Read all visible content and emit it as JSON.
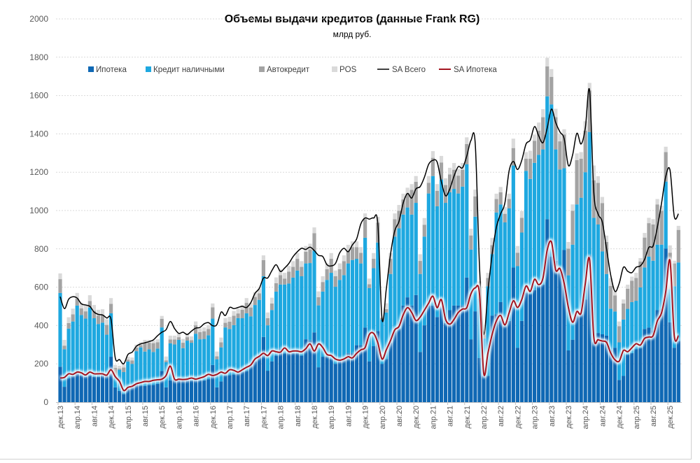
{
  "chart_data": {
    "type": "bar",
    "stacked": true,
    "title": "Объемы выдачи кредитов (данные Frank RG)",
    "subtitle": "млрд руб.",
    "ylim": [
      0,
      2000
    ],
    "yticks": [
      "0",
      "200",
      "400",
      "600",
      "800",
      "1000",
      "1200",
      "1400",
      "1600",
      "1800",
      "2000"
    ],
    "grid": true,
    "legend_position": "top-left",
    "x_tick_labels": [
      "дек.13",
      "апр.14",
      "авг.14",
      "дек.14",
      "апр.15",
      "авг.15",
      "дек.15",
      "апр.16",
      "авг.16",
      "дек.16",
      "апр.17",
      "авг.17",
      "дек.17",
      "апр.18",
      "авг.18",
      "дек.18",
      "апр.19",
      "авг.19",
      "дек.19",
      "апр.20",
      "авг.20",
      "дек.20",
      "апр.21",
      "авг.21",
      "дек.21",
      "апр.22",
      "авг.22",
      "дек.22",
      "апр.23",
      "авг.23",
      "дек.23",
      "апр.24",
      "авг.24",
      "дек.24",
      "апр.25",
      "авг.25",
      "дек.25"
    ],
    "x_tick_every_months": 4,
    "series": [
      {
        "name": "Ипотека",
        "kind": "bar",
        "color": "#0f68b4",
        "values": [
          185,
          80,
          124,
          136,
          151,
          139,
          132,
          139,
          132,
          132,
          139,
          139,
          237,
          77,
          59,
          43,
          71,
          77,
          90,
          87,
          85,
          90,
          90,
          96,
          163,
          77,
          114,
          120,
          117,
          114,
          114,
          114,
          120,
          114,
          114,
          120,
          194,
          77,
          108,
          139,
          141,
          145,
          151,
          157,
          163,
          188,
          212,
          243,
          340,
          164,
          213,
          243,
          279,
          255,
          255,
          255,
          255,
          243,
          328,
          322,
          364,
          182,
          237,
          237,
          225,
          200,
          225,
          219,
          255,
          255,
          297,
          297,
          389,
          213,
          292,
          371,
          200,
          225,
          310,
          371,
          383,
          504,
          547,
          504,
          559,
          262,
          401,
          504,
          504,
          444,
          504,
          413,
          480,
          504,
          504,
          504,
          650,
          328,
          474,
          230,
          137,
          137,
          452,
          459,
          522,
          396,
          424,
          703,
          284,
          424,
          571,
          564,
          585,
          606,
          613,
          955,
          759,
          738,
          690,
          794,
          270,
          326,
          466,
          459,
          536,
          766,
          312,
          361,
          354,
          347,
          270,
          284,
          116,
          137,
          249,
          256,
          277,
          284,
          382,
          389,
          375,
          480,
          487,
          801,
          417,
          284,
          319
        ]
      },
      {
        "name": "Кредит наличными",
        "kind": "bar",
        "color": "#1ea8e0",
        "values": [
          385,
          196,
          260,
          285,
          353,
          316,
          304,
          355,
          306,
          276,
          276,
          213,
          227,
          62,
          110,
          114,
          141,
          123,
          176,
          199,
          179,
          186,
          172,
          184,
          227,
          132,
          193,
          181,
          208,
          168,
          207,
          196,
          237,
          214,
          216,
          229,
          242,
          147,
          178,
          251,
          241,
          257,
          288,
          281,
          301,
          260,
          295,
          291,
          317,
          237,
          268,
          334,
          335,
          359,
          364,
          395,
          432,
          414,
          396,
          404,
          426,
          323,
          340,
          401,
          450,
          402,
          413,
          444,
          469,
          487,
          451,
          427,
          469,
          383,
          407,
          462,
          231,
          243,
          359,
          493,
          524,
          475,
          469,
          475,
          481,
          407,
          463,
          585,
          676,
          578,
          658,
          627,
          615,
          609,
          585,
          621,
          591,
          468,
          494,
          310,
          196,
          468,
          321,
          531,
          510,
          542,
          587,
          532,
          426,
          461,
          636,
          601,
          664,
          685,
          706,
          641,
          795,
          581,
          524,
          427,
          392,
          496,
          566,
          608,
          664,
          644,
          650,
          566,
          433,
          322,
          218,
          189,
          196,
          294,
          238,
          266,
          252,
          315,
          321,
          370,
          363,
          342,
          335,
          350,
          173,
          321,
          410
        ]
      },
      {
        "name": "Автокредит",
        "kind": "bar",
        "color": "#a3a3a3",
        "values": [
          72,
          19,
          29,
          37,
          36,
          34,
          38,
          34,
          39,
          44,
          40,
          51,
          49,
          40,
          6,
          24,
          10,
          18,
          19,
          12,
          46,
          34,
          46,
          33,
          45,
          9,
          20,
          26,
          14,
          28,
          18,
          13,
          44,
          38,
          40,
          33,
          59,
          15,
          26,
          24,
          38,
          49,
          24,
          44,
          54,
          46,
          42,
          34,
          84,
          37,
          34,
          44,
          49,
          31,
          62,
          56,
          61,
          49,
          61,
          71,
          92,
          43,
          50,
          56,
          73,
          55,
          56,
          73,
          67,
          67,
          61,
          55,
          97,
          19,
          49,
          104,
          7,
          18,
          79,
          91,
          92,
          79,
          73,
          129,
          110,
          68,
          62,
          56,
          95,
          81,
          88,
          93,
          93,
          100,
          93,
          88,
          106,
          74,
          106,
          55,
          17,
          43,
          47,
          70,
          63,
          45,
          49,
          91,
          70,
          77,
          63,
          105,
          115,
          126,
          168,
          156,
          143,
          168,
          147,
          175,
          139,
          177,
          231,
          203,
          217,
          217,
          196,
          217,
          252,
          167,
          119,
          84,
          84,
          84,
          105,
          112,
          119,
          135,
          156,
          175,
          189,
          210,
          177,
          154,
          190,
          119,
          170
        ]
      },
      {
        "name": "POS",
        "kind": "bar",
        "color": "#dadada",
        "values": [
          30,
          30,
          30,
          30,
          30,
          30,
          30,
          30,
          30,
          30,
          30,
          30,
          30,
          15,
          15,
          15,
          15,
          15,
          15,
          15,
          15,
          15,
          15,
          15,
          15,
          20,
          20,
          20,
          20,
          20,
          20,
          20,
          20,
          20,
          20,
          20,
          20,
          25,
          25,
          25,
          25,
          25,
          25,
          25,
          25,
          25,
          25,
          25,
          25,
          30,
          30,
          30,
          30,
          30,
          30,
          30,
          30,
          30,
          30,
          30,
          30,
          30,
          30,
          30,
          30,
          30,
          30,
          30,
          30,
          30,
          30,
          30,
          30,
          30,
          30,
          30,
          5,
          30,
          30,
          30,
          30,
          30,
          30,
          30,
          30,
          35,
          35,
          35,
          35,
          35,
          35,
          35,
          35,
          35,
          35,
          35,
          35,
          35,
          35,
          35,
          18,
          27,
          37,
          28,
          28,
          35,
          28,
          49,
          35,
          35,
          35,
          42,
          32,
          42,
          42,
          45,
          41,
          44,
          42,
          28,
          35,
          33,
          35,
          35,
          49,
          39,
          77,
          35,
          32,
          33,
          41,
          21,
          25,
          21,
          21,
          21,
          27,
          18,
          24,
          28,
          28,
          28,
          26,
          28,
          38,
          14,
          21
        ]
      },
      {
        "name": "SA Всего",
        "kind": "line",
        "color": "#000000",
        "values": [
          550,
          488,
          537,
          550,
          543,
          513,
          507,
          500,
          470,
          458,
          455,
          439,
          433,
          231,
          222,
          200,
          249,
          261,
          292,
          304,
          310,
          316,
          325,
          347,
          365,
          378,
          421,
          384,
          359,
          365,
          353,
          371,
          386,
          390,
          409,
          415,
          399,
          405,
          470,
          452,
          494,
          488,
          494,
          500,
          494,
          519,
          568,
          593,
          648,
          648,
          687,
          717,
          682,
          700,
          724,
          760,
          785,
          803,
          797,
          809,
          791,
          766,
          760,
          717,
          711,
          724,
          779,
          803,
          785,
          821,
          852,
          931,
          961,
          955,
          961,
          930,
          432,
          590,
          772,
          894,
          943,
          1040,
          1089,
          1065,
          1113,
          1125,
          1174,
          1241,
          1262,
          1253,
          1150,
          1077,
          1113,
          1180,
          1229,
          1223,
          1284,
          1366,
          1350,
          712,
          354,
          578,
          773,
          913,
          983,
          1039,
          1207,
          1256,
          1214,
          1263,
          1347,
          1368,
          1438,
          1389,
          1354,
          1431,
          1529,
          1459,
          1410,
          1375,
          1235,
          1291,
          1403,
          1347,
          1431,
          1627,
          1095,
          983,
          941,
          801,
          662,
          578,
          620,
          704,
          683,
          676,
          704,
          711,
          745,
          808,
          815,
          913,
          1039,
          1179,
          1210,
          969,
          983
        ]
      },
      {
        "name": "SA Ипотека",
        "kind": "line",
        "color": "#a3141f",
        "values": [
          126,
          129,
          148,
          145,
          157,
          153,
          142,
          157,
          148,
          148,
          148,
          141,
          169,
          133,
          108,
          61,
          77,
          83,
          96,
          102,
          108,
          108,
          114,
          117,
          120,
          139,
          188,
          120,
          120,
          118,
          120,
          126,
          120,
          126,
          133,
          145,
          139,
          145,
          157,
          151,
          169,
          166,
          157,
          169,
          182,
          194,
          225,
          239,
          255,
          243,
          267,
          263,
          261,
          283,
          263,
          267,
          267,
          263,
          279,
          304,
          267,
          304,
          285,
          249,
          243,
          225,
          219,
          225,
          237,
          231,
          255,
          273,
          285,
          353,
          359,
          310,
          225,
          273,
          322,
          377,
          395,
          456,
          493,
          468,
          426,
          444,
          480,
          517,
          553,
          493,
          535,
          432,
          407,
          432,
          468,
          486,
          493,
          566,
          596,
          566,
          151,
          256,
          354,
          424,
          452,
          403,
          466,
          529,
          494,
          536,
          606,
          578,
          641,
          613,
          648,
          794,
          836,
          690,
          697,
          620,
          494,
          417,
          473,
          466,
          620,
          745,
          340,
          326,
          319,
          312,
          256,
          221,
          214,
          270,
          263,
          284,
          305,
          298,
          333,
          340,
          347,
          424,
          466,
          578,
          738,
          347,
          347
        ]
      }
    ]
  }
}
